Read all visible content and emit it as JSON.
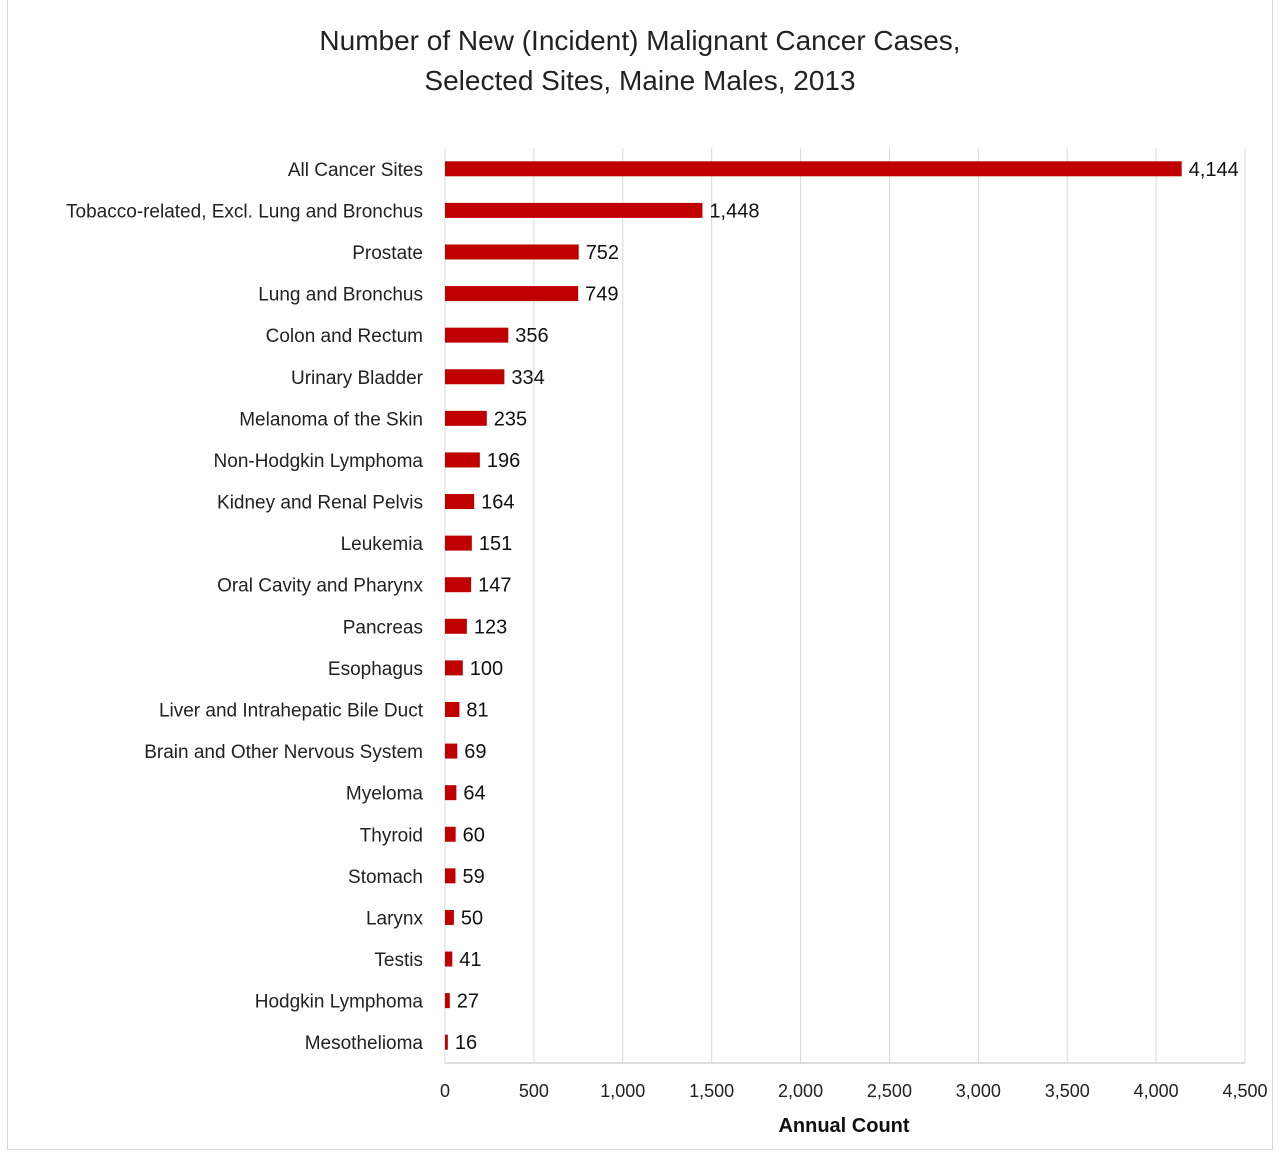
{
  "chart_data": {
    "type": "bar",
    "orientation": "horizontal",
    "title_line1": "Number of New (Incident) Malignant Cancer Cases,",
    "title_line2": "Selected Sites, Maine Males, 2013",
    "xlabel": "Annual Count",
    "ylabel": "",
    "xlim": [
      0,
      4500
    ],
    "x_ticks": [
      0,
      500,
      1000,
      1500,
      2000,
      2500,
      3000,
      3500,
      4000,
      4500
    ],
    "x_tick_labels": [
      "0",
      "500",
      "1,000",
      "1,500",
      "2,000",
      "2,500",
      "3,000",
      "3,500",
      "4,000",
      "4,500"
    ],
    "grid": "vertical",
    "bar_color": "#c00000",
    "categories": [
      "All Cancer Sites",
      "Tobacco-related, Excl. Lung and Bronchus",
      "Prostate",
      "Lung and Bronchus",
      "Colon and Rectum",
      "Urinary Bladder",
      "Melanoma of the Skin",
      "Non-Hodgkin Lymphoma",
      "Kidney and Renal Pelvis",
      "Leukemia",
      "Oral Cavity and Pharynx",
      "Pancreas",
      "Esophagus",
      "Liver and Intrahepatic Bile Duct",
      "Brain and Other Nervous System",
      "Myeloma",
      "Thyroid",
      "Stomach",
      "Larynx",
      "Testis",
      "Hodgkin Lymphoma",
      "Mesothelioma"
    ],
    "values": [
      4144,
      1448,
      752,
      749,
      356,
      334,
      235,
      196,
      164,
      151,
      147,
      123,
      100,
      81,
      69,
      64,
      60,
      59,
      50,
      41,
      27,
      16
    ],
    "data_labels": [
      "4,144",
      "1,448",
      "752",
      "749",
      "356",
      "334",
      "235",
      "196",
      "164",
      "151",
      "147",
      "123",
      "100",
      "81",
      "69",
      "64",
      "60",
      "59",
      "50",
      "41",
      "27",
      "16"
    ]
  }
}
